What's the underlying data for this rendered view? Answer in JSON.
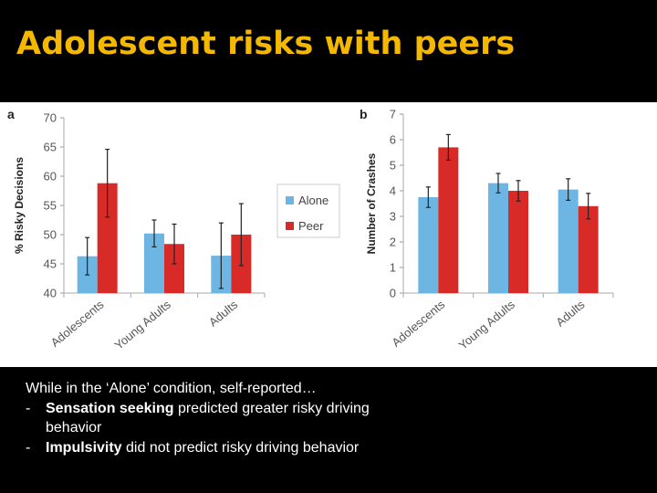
{
  "title": "Adolescent risks with peers",
  "chart_data": [
    {
      "panel": "a",
      "type": "bar",
      "ylabel": "% Risky Decisions",
      "ylim": [
        40,
        70
      ],
      "yticks": [
        "40",
        "45",
        "50",
        "55",
        "60",
        "65",
        "70"
      ],
      "categories": [
        "Adolescents",
        "Young Adults",
        "Adults"
      ],
      "series": [
        {
          "name": "Alone",
          "color": "#6db6e4",
          "values": [
            46.3,
            50.2,
            46.4
          ],
          "errors": [
            3.2,
            2.3,
            5.6
          ]
        },
        {
          "name": "Peer",
          "color": "#d82b27",
          "values": [
            58.8,
            48.4,
            50.0
          ],
          "errors": [
            5.8,
            3.4,
            5.3
          ]
        }
      ],
      "legend": {
        "position": "right",
        "labels": [
          "Alone",
          "Peer"
        ]
      }
    },
    {
      "panel": "b",
      "type": "bar",
      "ylabel": "Number of Crashes",
      "ylim": [
        0,
        7
      ],
      "yticks": [
        "0",
        "1",
        "2",
        "3",
        "4",
        "5",
        "6",
        "7"
      ],
      "categories": [
        "Adolescents",
        "Young Adults",
        "Adults"
      ],
      "series": [
        {
          "name": "Alone",
          "color": "#6db6e4",
          "values": [
            3.75,
            4.3,
            4.05
          ],
          "errors": [
            0.4,
            0.38,
            0.42
          ]
        },
        {
          "name": "Peer",
          "color": "#d82b27",
          "values": [
            5.7,
            4.0,
            3.4
          ],
          "errors": [
            0.5,
            0.4,
            0.5
          ]
        }
      ]
    }
  ],
  "caption": {
    "lead": "While in the ‘Alone’ condition, self-reported…",
    "items": [
      {
        "dash": "-",
        "bold": "Sensation seeking",
        "rest": " predicted greater risky driving behavior"
      },
      {
        "dash": "-",
        "bold": "Impulsivity",
        "rest": " did not predict risky driving behavior"
      }
    ]
  }
}
